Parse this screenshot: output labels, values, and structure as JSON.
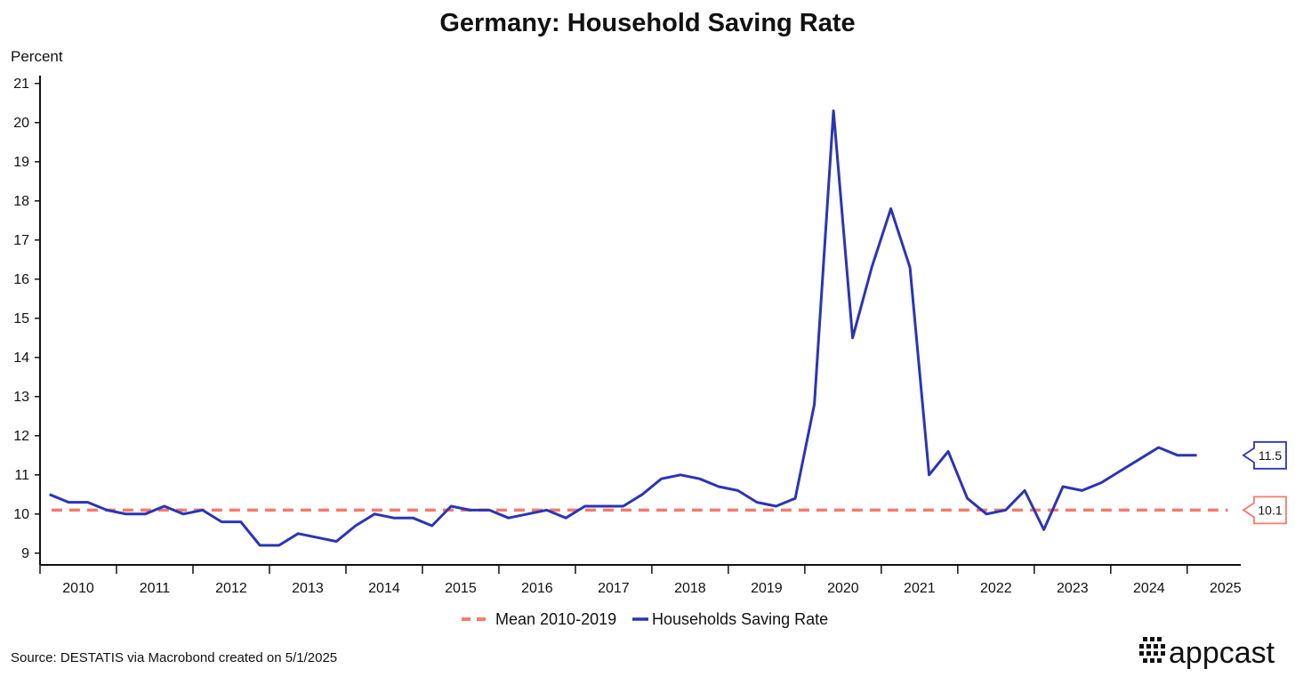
{
  "chart_data": {
    "type": "line",
    "title": "Germany: Household Saving Rate",
    "ylabel": "Percent",
    "xlabel": "",
    "ylim": [
      8.7,
      21.2
    ],
    "xlim": [
      2009.5,
      2025.2
    ],
    "yticks": [
      9,
      10,
      11,
      12,
      13,
      14,
      15,
      16,
      17,
      18,
      19,
      20,
      21
    ],
    "xtick_labels": [
      "2010",
      "2011",
      "2012",
      "2013",
      "2014",
      "2015",
      "2016",
      "2017",
      "2018",
      "2019",
      "2020",
      "2021",
      "2022",
      "2023",
      "2024",
      "2025"
    ],
    "grid": false,
    "legend_position": "bottom-center",
    "series": [
      {
        "name": "Mean 2010-2019",
        "style": "dashed",
        "color": "#f47b6b",
        "x": [
          2009.65,
          2025.03
        ],
        "values": [
          10.1,
          10.1
        ],
        "end_label": "10.1"
      },
      {
        "name": "Households Saving Rate",
        "style": "solid",
        "color": "#2a35b4",
        "x": [
          2009.625,
          2009.875,
          2010.125,
          2010.375,
          2010.625,
          2010.875,
          2011.125,
          2011.375,
          2011.625,
          2011.875,
          2012.125,
          2012.375,
          2012.625,
          2012.875,
          2013.125,
          2013.375,
          2013.625,
          2013.875,
          2014.125,
          2014.375,
          2014.625,
          2014.875,
          2015.125,
          2015.375,
          2015.625,
          2015.875,
          2016.125,
          2016.375,
          2016.625,
          2016.875,
          2017.125,
          2017.375,
          2017.625,
          2017.875,
          2018.125,
          2018.375,
          2018.625,
          2018.875,
          2019.125,
          2019.375,
          2019.625,
          2019.875,
          2020.125,
          2020.375,
          2020.625,
          2020.875,
          2021.125,
          2021.375,
          2021.625,
          2021.875,
          2022.125,
          2022.375,
          2022.625,
          2022.875,
          2023.125,
          2023.375,
          2023.625,
          2023.875,
          2024.125,
          2024.375,
          2024.625
        ],
        "values": [
          10.5,
          10.3,
          10.3,
          10.1,
          10.0,
          10.0,
          10.2,
          10.0,
          10.1,
          9.8,
          9.8,
          9.2,
          9.2,
          9.5,
          9.4,
          9.3,
          9.7,
          10.0,
          9.9,
          9.9,
          9.7,
          10.2,
          10.1,
          10.1,
          9.9,
          10.0,
          10.1,
          9.9,
          10.2,
          10.2,
          10.2,
          10.5,
          10.9,
          11.0,
          10.9,
          10.7,
          10.6,
          10.3,
          10.2,
          10.4,
          12.8,
          20.3,
          14.5,
          16.3,
          17.8,
          16.3,
          11.0,
          11.6,
          10.4,
          10.0,
          10.1,
          10.6,
          9.6,
          10.7,
          10.6,
          10.8,
          11.1,
          11.4,
          11.7,
          11.5,
          11.5
        ],
        "end_label": "11.5"
      }
    ]
  },
  "source_text": "Source: DESTATIS via Macrobond created on 5/1/2025",
  "brand": {
    "name": "appcast",
    "primary_color": "#2a35b4",
    "mean_color": "#f47b6b"
  }
}
